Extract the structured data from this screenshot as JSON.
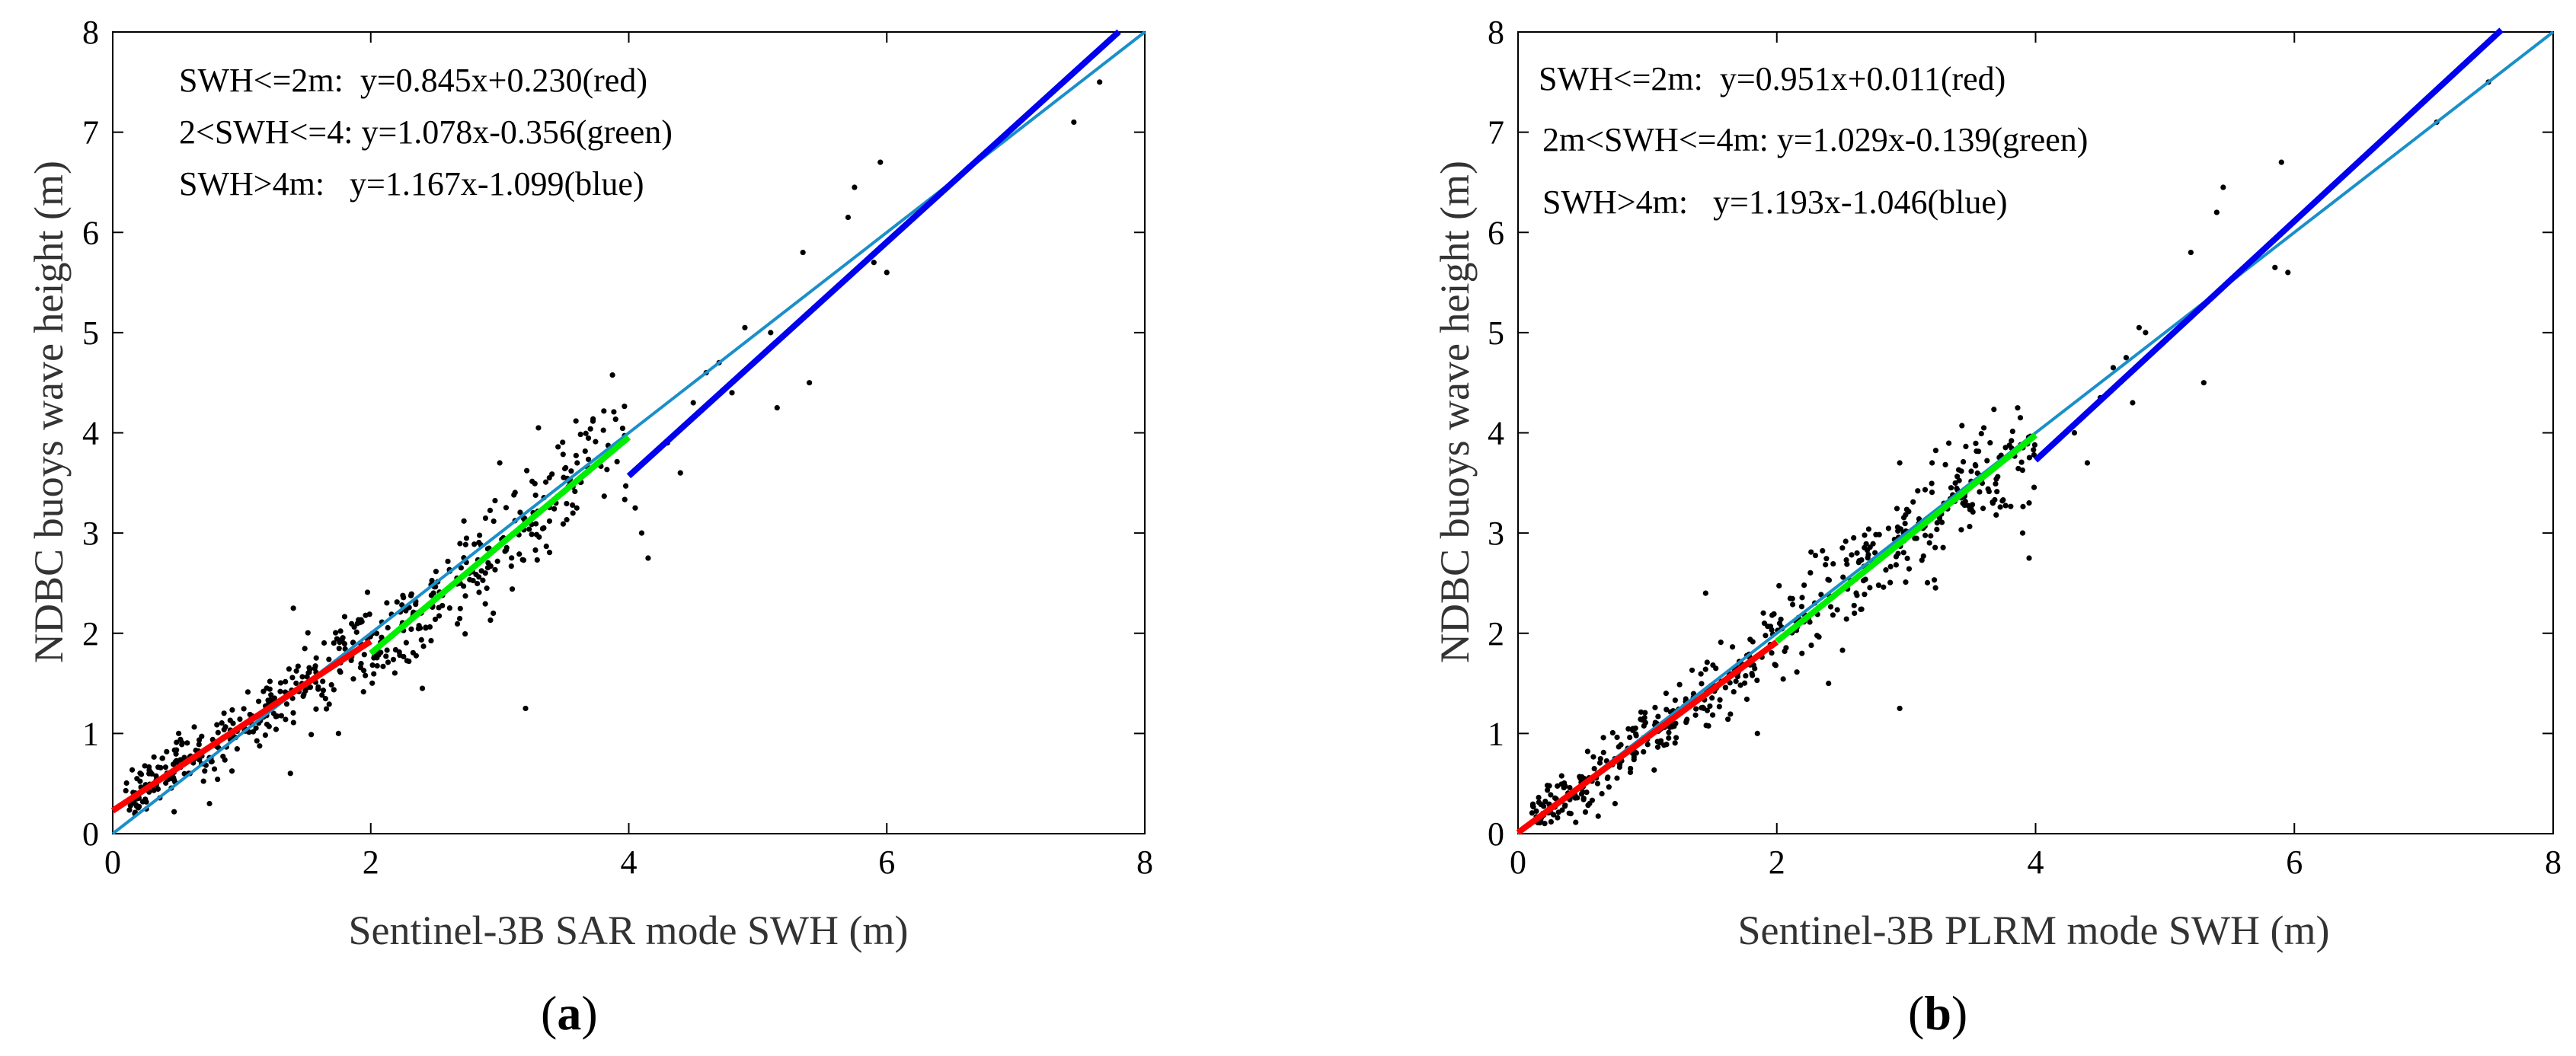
{
  "chart_data": [
    {
      "id": "a",
      "type": "scatter",
      "caption_letter": "a",
      "xlabel": "Sentinel-3B SAR mode SWH (m)",
      "ylabel": "NDBC buoys wave height (m)",
      "xlim": [
        0,
        8
      ],
      "ylim": [
        0,
        8
      ],
      "xticks": [
        0,
        2,
        4,
        6,
        8
      ],
      "yticks": [
        0,
        1,
        2,
        3,
        4,
        5,
        6,
        7,
        8
      ],
      "grid": false,
      "annotations": [
        "SWH<=2m:  y=0.845x+0.230(red)",
        "2<SWH<=4: y=1.078x-0.356(green)",
        "SWH>4m:   y=1.167x-1.099(blue)"
      ],
      "reference_line": {
        "slope": 1,
        "intercept": 0,
        "x_range": [
          0,
          8
        ],
        "color": "#1a8fc9"
      },
      "fit_lines": [
        {
          "name": "SWH<=2m",
          "slope": 0.845,
          "intercept": 0.23,
          "x_range": [
            0,
            2
          ],
          "color": "#ff0000"
        },
        {
          "name": "2<SWH<=4",
          "slope": 1.078,
          "intercept": -0.356,
          "x_range": [
            2,
            4
          ],
          "color": "#00ee00"
        },
        {
          "name": "SWH>4m",
          "slope": 1.167,
          "intercept": -1.099,
          "x_range": [
            4,
            7.8
          ],
          "color": "#0000ee"
        }
      ],
      "points_outliers": [
        [
          3.2,
          1.25
        ],
        [
          4.15,
          2.75
        ],
        [
          4.1,
          3.0
        ],
        [
          4.05,
          3.25
        ],
        [
          4.4,
          3.6
        ],
        [
          4.3,
          3.9
        ],
        [
          4.5,
          4.3
        ],
        [
          4.6,
          4.6
        ],
        [
          4.7,
          4.7
        ],
        [
          4.8,
          4.4
        ],
        [
          4.9,
          5.05
        ],
        [
          5.1,
          5.0
        ],
        [
          5.15,
          4.25
        ],
        [
          5.4,
          4.5
        ],
        [
          5.35,
          5.8
        ],
        [
          5.7,
          6.15
        ],
        [
          5.75,
          6.45
        ],
        [
          5.95,
          6.7
        ],
        [
          6.0,
          5.6
        ],
        [
          5.9,
          5.7
        ],
        [
          7.45,
          7.1
        ],
        [
          7.65,
          7.5
        ],
        [
          1.4,
          2.25
        ],
        [
          2.4,
          1.45
        ],
        [
          1.75,
          1.0
        ],
        [
          0.75,
          0.3
        ],
        [
          3.6,
          3.7
        ],
        [
          3.0,
          3.7
        ],
        [
          3.3,
          4.05
        ],
        [
          2.95,
          2.2
        ]
      ]
    },
    {
      "id": "b",
      "type": "scatter",
      "caption_letter": "b",
      "xlabel": "Sentinel-3B PLRM mode SWH (m)",
      "ylabel": "NDBC buoys wave height (m)",
      "xlim": [
        0,
        8
      ],
      "ylim": [
        0,
        8
      ],
      "xticks": [
        0,
        2,
        4,
        6,
        8
      ],
      "yticks": [
        0,
        1,
        2,
        3,
        4,
        5,
        6,
        7,
        8
      ],
      "grid": false,
      "annotations": [
        "SWH<=2m:  y=0.951x+0.011(red)",
        "2m<SWH<=4m: y=1.029x-0.139(green)",
        "SWH>4m:   y=1.193x-1.046(blue)"
      ],
      "reference_line": {
        "slope": 1,
        "intercept": 0,
        "x_range": [
          0,
          8
        ],
        "color": "#1a8fc9"
      },
      "fit_lines": [
        {
          "name": "SWH<=2m",
          "slope": 0.951,
          "intercept": 0.011,
          "x_range": [
            0,
            2
          ],
          "color": "#ff0000"
        },
        {
          "name": "2m<SWH<=4m",
          "slope": 1.029,
          "intercept": -0.139,
          "x_range": [
            2,
            4
          ],
          "color": "#00ee00"
        },
        {
          "name": "SWH>4m",
          "slope": 1.193,
          "intercept": -1.046,
          "x_range": [
            4,
            7.6
          ],
          "color": "#0000ee"
        }
      ],
      "points_outliers": [
        [
          2.95,
          1.25
        ],
        [
          3.95,
          2.75
        ],
        [
          3.9,
          3.0
        ],
        [
          3.95,
          3.3
        ],
        [
          4.4,
          3.7
        ],
        [
          4.3,
          4.0
        ],
        [
          4.5,
          4.35
        ],
        [
          4.6,
          4.65
        ],
        [
          4.7,
          4.75
        ],
        [
          4.75,
          4.3
        ],
        [
          4.8,
          5.05
        ],
        [
          4.85,
          5.0
        ],
        [
          5.2,
          5.8
        ],
        [
          5.3,
          4.5
        ],
        [
          5.4,
          6.2
        ],
        [
          5.45,
          6.45
        ],
        [
          5.9,
          6.7
        ],
        [
          5.85,
          5.65
        ],
        [
          5.95,
          5.6
        ],
        [
          7.1,
          7.1
        ],
        [
          7.5,
          7.5
        ],
        [
          1.45,
          2.4
        ],
        [
          2.4,
          1.5
        ],
        [
          1.85,
          1.0
        ],
        [
          0.75,
          0.3
        ],
        [
          3.2,
          3.7
        ],
        [
          2.95,
          3.7
        ],
        [
          3.6,
          4.05
        ],
        [
          2.6,
          2.2
        ]
      ]
    }
  ],
  "captions": {
    "a": "a",
    "b": "b"
  }
}
